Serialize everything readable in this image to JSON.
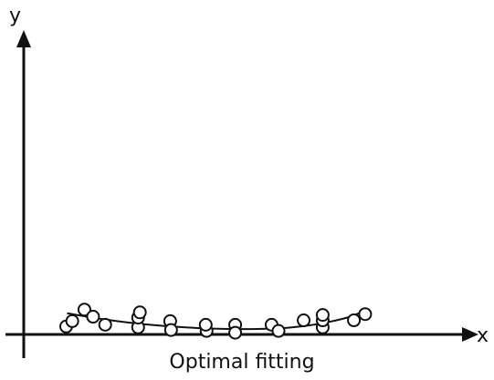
{
  "chart_data": {
    "type": "scatter",
    "title": "Optimal fitting",
    "xlabel": "x",
    "ylabel": "y",
    "grid": false,
    "legend": "none",
    "points": [
      {
        "x": 49,
        "y": 6.8
      },
      {
        "x": 56,
        "y": 11.4
      },
      {
        "x": 70,
        "y": 21.3
      },
      {
        "x": 80,
        "y": 15.2
      },
      {
        "x": 94,
        "y": 8.3
      },
      {
        "x": 132,
        "y": 6.1
      },
      {
        "x": 132,
        "y": 14.4
      },
      {
        "x": 134,
        "y": 18.9
      },
      {
        "x": 169,
        "y": 11.4
      },
      {
        "x": 170,
        "y": 3.8
      },
      {
        "x": 211,
        "y": 3.0
      },
      {
        "x": 210,
        "y": 8.3
      },
      {
        "x": 244,
        "y": 8.3
      },
      {
        "x": 244,
        "y": 1.5
      },
      {
        "x": 286,
        "y": 8.3
      },
      {
        "x": 294,
        "y": 3.0
      },
      {
        "x": 323,
        "y": 12.1
      },
      {
        "x": 345,
        "y": 6.1
      },
      {
        "x": 345,
        "y": 12.1
      },
      {
        "x": 345,
        "y": 16.7
      },
      {
        "x": 381,
        "y": 12.1
      },
      {
        "x": 394,
        "y": 17.4
      }
    ],
    "fit_curve": [
      {
        "x": 50,
        "y": 18.2
      },
      {
        "x": 75,
        "y": 15.0
      },
      {
        "x": 100,
        "y": 12.2
      },
      {
        "x": 125,
        "y": 9.9
      },
      {
        "x": 150,
        "y": 8.0
      },
      {
        "x": 175,
        "y": 6.6
      },
      {
        "x": 200,
        "y": 5.5
      },
      {
        "x": 225,
        "y": 4.9
      },
      {
        "x": 250,
        "y": 4.6
      },
      {
        "x": 275,
        "y": 4.8
      },
      {
        "x": 300,
        "y": 5.5
      },
      {
        "x": 325,
        "y": 7.3
      },
      {
        "x": 350,
        "y": 10.4
      },
      {
        "x": 375,
        "y": 14.9
      },
      {
        "x": 395,
        "y": 20.8
      }
    ],
    "xlim": [
      0,
      510
    ],
    "ylim": [
      0,
      250
    ]
  }
}
